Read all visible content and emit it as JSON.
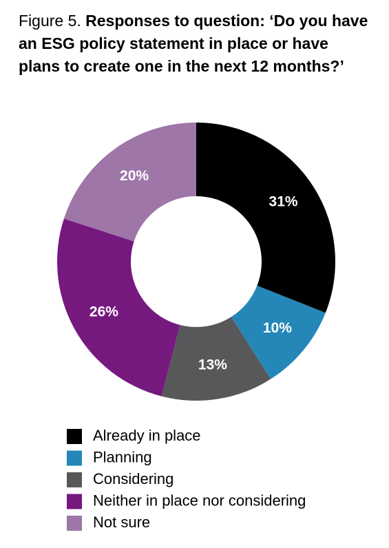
{
  "chart_data": {
    "type": "donut",
    "figure_label": "Figure 5.",
    "title": "Responses to question: ‘Do you have an ESG policy statement in place or have plans to create one in the next 12 months?’",
    "categories": [
      "Already in place",
      "Planning",
      "Considering",
      "Neither in place nor considering",
      "Not sure"
    ],
    "values": [
      31,
      10,
      13,
      26,
      20
    ],
    "value_labels": [
      "31%",
      "10%",
      "13%",
      "26%",
      "20%"
    ],
    "colors": [
      "#000000",
      "#2487b8",
      "#58585a",
      "#75197f",
      "#9e76a8"
    ]
  }
}
